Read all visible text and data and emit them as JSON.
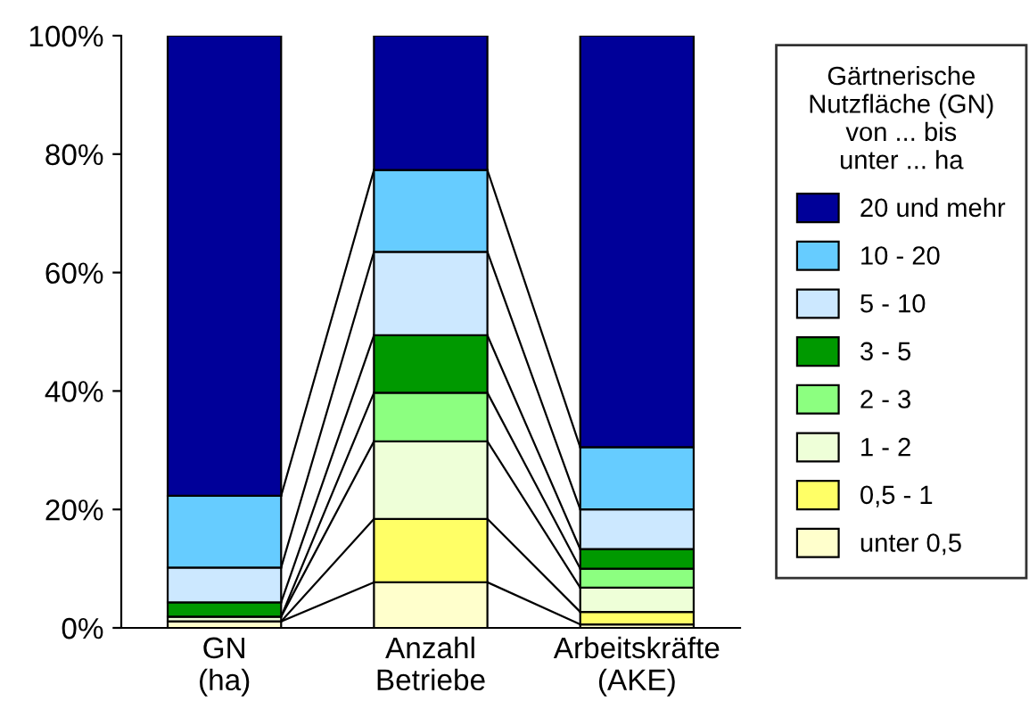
{
  "chart_data": {
    "type": "bar",
    "stacked": true,
    "categories": [
      "GN\n(ha)",
      "Anzahl\nBetriebe",
      "Arbeitskräfte\n(AKE)"
    ],
    "legend_title": "Gärtnerische\nNutzfläche (GN)\nvon ... bis\nunter ... ha",
    "legend": "right",
    "ylim": [
      0,
      100
    ],
    "yticks": [
      {
        "value": 0,
        "label": "0%"
      },
      {
        "value": 20,
        "label": "20%"
      },
      {
        "value": 40,
        "label": "40%"
      },
      {
        "value": 60,
        "label": "60%"
      },
      {
        "value": 80,
        "label": "80%"
      },
      {
        "value": 100,
        "label": "100%"
      }
    ],
    "grid": false,
    "series": [
      {
        "name": "unter 0,5",
        "color": "#ffffcc",
        "values": [
          1.1,
          7.7,
          0.6
        ]
      },
      {
        "name": "0,5 - 1",
        "color": "#ffff66",
        "values": [
          null,
          10.7,
          2.1
        ]
      },
      {
        "name": "1 - 2",
        "color": "#eeffd8",
        "values": [
          0.8,
          13.1,
          4.1
        ]
      },
      {
        "name": "2 - 3",
        "color": "#8cff80",
        "values": [
          null,
          8.2,
          3.2
        ]
      },
      {
        "name": "3 - 5",
        "color": "#009900",
        "values": [
          2.4,
          9.7,
          3.3
        ]
      },
      {
        "name": "5 - 10",
        "color": "#cce8ff",
        "values": [
          5.9,
          14.1,
          6.7
        ]
      },
      {
        "name": "10 - 20",
        "color": "#66ccff",
        "values": [
          12.1,
          13.8,
          10.5
        ]
      },
      {
        "name": "20 und mehr",
        "color": "#000099",
        "values": [
          77.7,
          22.7,
          69.5
        ]
      }
    ]
  }
}
